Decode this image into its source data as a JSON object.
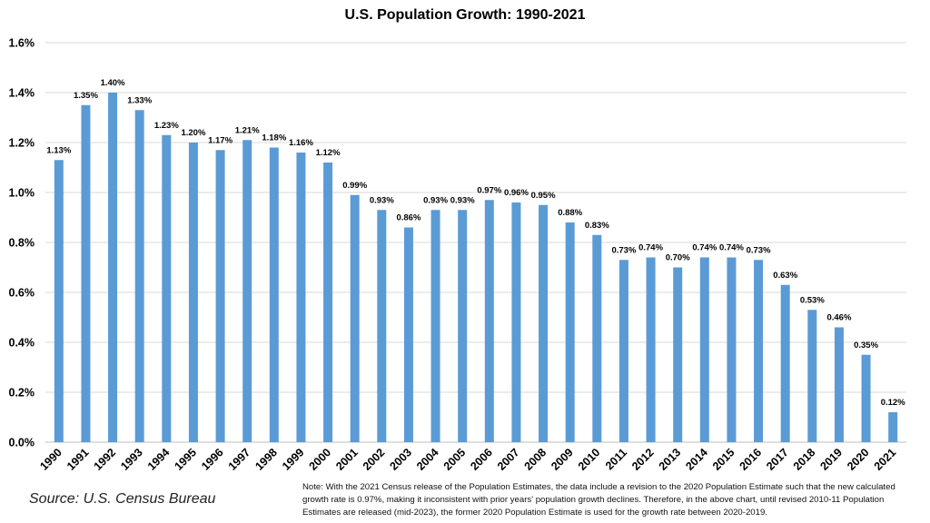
{
  "chart_data": {
    "type": "bar",
    "title": "U.S. Population Growth: 1990-2021",
    "categories": [
      "1990",
      "1991",
      "1992",
      "1993",
      "1994",
      "1995",
      "1996",
      "1997",
      "1998",
      "1999",
      "2000",
      "2001",
      "2002",
      "2003",
      "2004",
      "2005",
      "2006",
      "2007",
      "2008",
      "2009",
      "2010",
      "2011",
      "2012",
      "2013",
      "2014",
      "2015",
      "2016",
      "2017",
      "2018",
      "2019",
      "2020",
      "2021"
    ],
    "values": [
      1.13,
      1.35,
      1.4,
      1.33,
      1.23,
      1.2,
      1.17,
      1.21,
      1.18,
      1.16,
      1.12,
      0.99,
      0.93,
      0.86,
      0.93,
      0.93,
      0.97,
      0.96,
      0.95,
      0.88,
      0.83,
      0.73,
      0.74,
      0.7,
      0.74,
      0.74,
      0.73,
      0.63,
      0.53,
      0.46,
      0.35,
      0.12
    ],
    "data_labels": [
      "1.13%",
      "1.35%",
      "1.40%",
      "1.33%",
      "1.23%",
      "1.20%",
      "1.17%",
      "1.21%",
      "1.18%",
      "1.16%",
      "1.12%",
      "0.99%",
      "0.93%",
      "0.86%",
      "0.93%",
      "0.93%",
      "0.97%",
      "0.96%",
      "0.95%",
      "0.88%",
      "0.83%",
      "0.73%",
      "0.74%",
      "0.70%",
      "0.74%",
      "0.74%",
      "0.73%",
      "0.63%",
      "0.53%",
      "0.46%",
      "0.35%",
      "0.12%"
    ],
    "y_ticks": [
      "0.0%",
      "0.2%",
      "0.4%",
      "0.6%",
      "0.8%",
      "1.0%",
      "1.2%",
      "1.4%",
      "1.6%"
    ],
    "ylim": [
      0,
      1.6
    ],
    "xlabel": "",
    "ylabel": "",
    "grid": true,
    "bar_color": "#5B9BD5",
    "grid_color": "#D9D9D9"
  },
  "source": "Source: U.S. Census Bureau",
  "note": "Note: With the 2021 Census release of the Population Estimates, the data include a revision to the 2020 Population Estimate such that the new calculated growth rate is 0.97%, making it inconsistent with prior years' population growth declines. Therefore, in the above chart, until revised 2010-11 Population Estimates are released (mid-2023), the former 2020 Population Estimate is used for the growth rate between 2020-2019."
}
